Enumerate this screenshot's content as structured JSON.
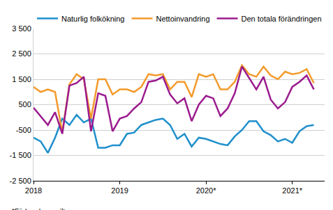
{
  "chart_data": {
    "type": "line",
    "note": "*Förhandsuppgift",
    "categories": [
      "2018",
      null,
      null,
      null,
      null,
      null,
      null,
      null,
      null,
      null,
      null,
      null,
      "2019",
      null,
      null,
      null,
      null,
      null,
      null,
      null,
      null,
      null,
      null,
      null,
      "2020*",
      null,
      null,
      null,
      null,
      null,
      null,
      null,
      null,
      null,
      null,
      null,
      "2021*",
      null,
      null,
      null
    ],
    "series": [
      {
        "name": "Naturlig folkökning",
        "color": "#1f8fcb",
        "values": [
          -800,
          -950,
          -1400,
          -800,
          -50,
          -300,
          100,
          -200,
          -50,
          -1200,
          -1200,
          -1100,
          -1100,
          -650,
          -600,
          -300,
          -200,
          -100,
          -50,
          -300,
          -850,
          -650,
          -1150,
          -800,
          -850,
          -950,
          -1050,
          -1100,
          -750,
          -500,
          -150,
          -150,
          -550,
          -700,
          -950,
          -850,
          -1000,
          -550,
          -350,
          -300
        ]
      },
      {
        "name": "Nettoinvandring",
        "color": "#f39a2b",
        "values": [
          1200,
          1000,
          1100,
          1000,
          -600,
          1300,
          1700,
          1500,
          -50,
          1500,
          1500,
          900,
          1100,
          1100,
          1000,
          1200,
          1700,
          1650,
          1700,
          1100,
          1400,
          1400,
          800,
          1700,
          1600,
          1700,
          1100,
          1100,
          1400,
          2050,
          1700,
          1600,
          2000,
          1650,
          1500,
          1800,
          1700,
          1750,
          1900,
          1350
        ]
      },
      {
        "name": "Den totala förändringen",
        "color": "#9b1b8e",
        "values": [
          380,
          50,
          -300,
          200,
          -650,
          1250,
          1350,
          1600,
          -550,
          950,
          850,
          -550,
          -50,
          50,
          350,
          600,
          1400,
          1450,
          1600,
          900,
          550,
          750,
          -150,
          500,
          850,
          750,
          50,
          350,
          950,
          2000,
          1550,
          1100,
          1600,
          700,
          350,
          600,
          1200,
          1400,
          1650,
          1100
        ]
      }
    ],
    "ylim": [
      -2500,
      3500
    ],
    "yticks": [
      {
        "value": -2500,
        "label": "-2 500"
      },
      {
        "value": -1500,
        "label": "-1 500"
      },
      -500,
      500,
      {
        "value": 1500,
        "label": "1 500"
      },
      {
        "value": 2500,
        "label": "2 500"
      },
      {
        "value": 3500,
        "label": "3 500"
      }
    ],
    "grid": true,
    "legend": "top"
  }
}
